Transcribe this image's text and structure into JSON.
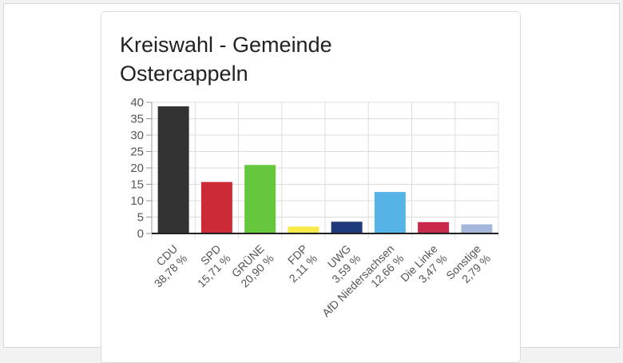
{
  "chart_data": {
    "type": "bar",
    "title_lines": [
      "Kreiswahl - Gemeinde",
      "Ostercappeln"
    ],
    "categories": [
      "CDU",
      "SPD",
      "GRÜNE",
      "FDP",
      "UWG",
      "AfD Niedersachsen",
      "Die Linke",
      "Sonstige"
    ],
    "value_labels": [
      "38,78 %",
      "15,71 %",
      "20,90 %",
      "2,11 %",
      "3,59 %",
      "12,66 %",
      "3,47 %",
      "2,79 %"
    ],
    "values": [
      38.78,
      15.71,
      20.9,
      2.11,
      3.59,
      12.66,
      3.47,
      2.79
    ],
    "colors": [
      "#333333",
      "#cc2a36",
      "#65c83c",
      "#f7ea48",
      "#1f3a7a",
      "#55b3e6",
      "#c8284a",
      "#a6b7dc"
    ],
    "yticks": [
      0,
      5,
      10,
      15,
      20,
      25,
      30,
      35,
      40
    ],
    "ylim": [
      0,
      40
    ],
    "xlabel": "",
    "ylabel": "",
    "grid": true
  }
}
